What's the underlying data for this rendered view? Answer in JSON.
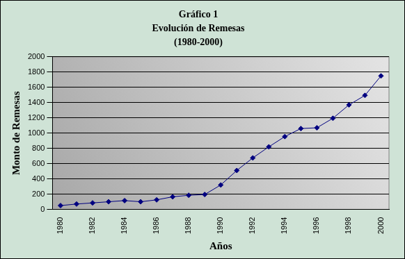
{
  "chart_data": {
    "type": "line",
    "title": [
      "Gráfico 1",
      "Evolución de Remesas",
      "(1980-2000)"
    ],
    "x_label": "Años",
    "y_label": "Monto de Remesas",
    "categories": [
      "1980",
      null,
      "1982",
      null,
      "1984",
      null,
      "1986",
      null,
      "1988",
      null,
      "1990",
      null,
      "1992",
      null,
      "1994",
      null,
      "1996",
      null,
      "1998",
      null,
      "2000"
    ],
    "values": [
      50,
      70,
      85,
      100,
      115,
      100,
      125,
      165,
      185,
      195,
      320,
      510,
      675,
      820,
      955,
      1060,
      1070,
      1195,
      1370,
      1495,
      1750
    ],
    "color": "#000080",
    "marker": "diamond",
    "ylim": [
      0,
      2000
    ],
    "yticks": [
      0,
      200,
      400,
      600,
      800,
      1000,
      1200,
      1400,
      1600,
      1800,
      2000
    ],
    "grid": true
  }
}
